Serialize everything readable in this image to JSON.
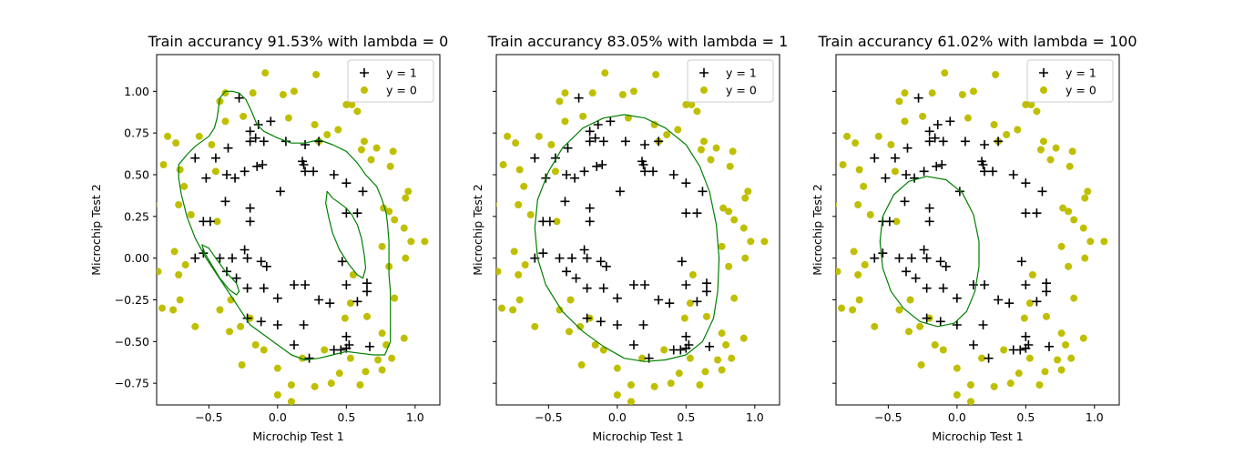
{
  "chart_data": [
    {
      "type": "scatter",
      "title": "Train accurancy 91.53% with lambda = 0",
      "xlabel": "Microchip Test 1",
      "ylabel": "Microchip Test 2",
      "xlim": [
        -0.88,
        1.18
      ],
      "ylim": [
        -0.88,
        1.22
      ],
      "xticks": [
        "−0.5",
        "0.0",
        "0.5",
        "1.0"
      ],
      "yticks": [
        "−0.75",
        "−0.50",
        "−0.25",
        "0.00",
        "0.25",
        "0.50",
        "0.75",
        "1.00"
      ],
      "legend": [
        "y = 1",
        "y = 0"
      ],
      "legend_position": "top-right",
      "boundary": [
        [
          [
            -0.72,
            0.56
          ],
          [
            -0.66,
            0.62
          ],
          [
            -0.6,
            0.67
          ],
          [
            -0.55,
            0.7
          ],
          [
            -0.5,
            0.73
          ],
          [
            -0.46,
            0.78
          ],
          [
            -0.44,
            0.84
          ],
          [
            -0.43,
            0.9
          ],
          [
            -0.42,
            0.96
          ],
          [
            -0.38,
            1.0
          ],
          [
            -0.33,
            1.0
          ],
          [
            -0.28,
            0.99
          ],
          [
            -0.23,
            0.95
          ],
          [
            -0.19,
            0.88
          ],
          [
            -0.15,
            0.8
          ],
          [
            -0.1,
            0.76
          ],
          [
            0.0,
            0.72
          ],
          [
            0.1,
            0.69
          ],
          [
            0.2,
            0.69
          ],
          [
            0.3,
            0.71
          ],
          [
            0.4,
            0.68
          ],
          [
            0.5,
            0.64
          ],
          [
            0.58,
            0.57
          ],
          [
            0.64,
            0.5
          ],
          [
            0.72,
            0.43
          ],
          [
            0.76,
            0.35
          ],
          [
            0.79,
            0.27
          ],
          [
            0.8,
            0.2
          ],
          [
            0.81,
            0.1
          ],
          [
            0.81,
            0.0
          ],
          [
            0.81,
            -0.1
          ],
          [
            0.82,
            -0.2
          ],
          [
            0.82,
            -0.3
          ],
          [
            0.82,
            -0.4
          ],
          [
            0.82,
            -0.5
          ],
          [
            0.78,
            -0.58
          ],
          [
            0.7,
            -0.58
          ],
          [
            0.6,
            -0.57
          ],
          [
            0.5,
            -0.56
          ],
          [
            0.4,
            -0.58
          ],
          [
            0.3,
            -0.6
          ],
          [
            0.2,
            -0.61
          ],
          [
            0.1,
            -0.58
          ],
          [
            0.0,
            -0.52
          ],
          [
            -0.1,
            -0.46
          ],
          [
            -0.2,
            -0.4
          ],
          [
            -0.28,
            -0.3
          ],
          [
            -0.36,
            -0.2
          ],
          [
            -0.44,
            -0.1
          ],
          [
            -0.52,
            0.0
          ],
          [
            -0.6,
            0.12
          ],
          [
            -0.66,
            0.25
          ],
          [
            -0.7,
            0.38
          ],
          [
            -0.72,
            0.48
          ],
          [
            -0.72,
            0.56
          ]
        ],
        [
          [
            0.36,
            0.4
          ],
          [
            0.4,
            0.36
          ],
          [
            0.45,
            0.33
          ],
          [
            0.5,
            0.3
          ],
          [
            0.54,
            0.26
          ],
          [
            0.58,
            0.2
          ],
          [
            0.61,
            0.12
          ],
          [
            0.63,
            0.02
          ],
          [
            0.64,
            -0.06
          ],
          [
            0.62,
            -0.12
          ],
          [
            0.58,
            -0.1
          ],
          [
            0.52,
            -0.04
          ],
          [
            0.45,
            0.05
          ],
          [
            0.4,
            0.15
          ],
          [
            0.37,
            0.25
          ],
          [
            0.35,
            0.33
          ],
          [
            0.36,
            0.4
          ]
        ],
        [
          [
            -0.55,
            0.08
          ],
          [
            -0.5,
            0.06
          ],
          [
            -0.45,
            0.0
          ],
          [
            -0.38,
            -0.08
          ],
          [
            -0.3,
            -0.15
          ],
          [
            -0.28,
            -0.2
          ],
          [
            -0.3,
            -0.22
          ],
          [
            -0.35,
            -0.19
          ],
          [
            -0.42,
            -0.12
          ],
          [
            -0.48,
            -0.04
          ],
          [
            -0.53,
            0.03
          ],
          [
            -0.55,
            0.08
          ]
        ]
      ]
    },
    {
      "type": "scatter",
      "title": "Train accurancy 83.05% with lambda = 1",
      "xlabel": "Microchip Test 1",
      "ylabel": "Microchip Test 2",
      "xlim": [
        -0.88,
        1.18
      ],
      "ylim": [
        -0.88,
        1.22
      ],
      "xticks": [
        "−0.5",
        "0.0",
        "0.5",
        "1.0"
      ],
      "yticks": [
        "−0.75",
        "−0.50",
        "−0.25",
        "0.00",
        "0.25",
        "0.50",
        "0.75",
        "1.00"
      ],
      "legend": [
        "y = 1",
        "y = 0"
      ],
      "legend_position": "top-right",
      "boundary": [
        [
          [
            -0.6,
            0.18
          ],
          [
            -0.58,
            0.35
          ],
          [
            -0.5,
            0.52
          ],
          [
            -0.4,
            0.66
          ],
          [
            -0.25,
            0.78
          ],
          [
            -0.1,
            0.84
          ],
          [
            0.05,
            0.86
          ],
          [
            0.2,
            0.84
          ],
          [
            0.35,
            0.78
          ],
          [
            0.5,
            0.68
          ],
          [
            0.6,
            0.55
          ],
          [
            0.67,
            0.4
          ],
          [
            0.72,
            0.2
          ],
          [
            0.74,
            0.0
          ],
          [
            0.73,
            -0.2
          ],
          [
            0.7,
            -0.36
          ],
          [
            0.62,
            -0.5
          ],
          [
            0.5,
            -0.58
          ],
          [
            0.35,
            -0.61
          ],
          [
            0.2,
            -0.62
          ],
          [
            0.05,
            -0.6
          ],
          [
            -0.1,
            -0.53
          ],
          [
            -0.25,
            -0.44
          ],
          [
            -0.4,
            -0.32
          ],
          [
            -0.52,
            -0.16
          ],
          [
            -0.58,
            0.0
          ],
          [
            -0.6,
            0.18
          ]
        ]
      ]
    },
    {
      "type": "scatter",
      "title": "Train accurancy 61.02% with lambda = 100",
      "xlabel": "Microchip Test 1",
      "ylabel": "Microchip Test 2",
      "xlim": [
        -0.88,
        1.18
      ],
      "ylim": [
        -0.88,
        1.22
      ],
      "xticks": [
        "−0.5",
        "0.0",
        "0.5",
        "1.0"
      ],
      "yticks": [
        "−0.75",
        "−0.50",
        "−0.25",
        "0.00",
        "0.25",
        "0.50",
        "0.75",
        "1.00"
      ],
      "legend": [
        "y = 1",
        "y = 0"
      ],
      "legend_position": "top-right",
      "boundary": [
        [
          [
            -0.56,
            0.1
          ],
          [
            -0.54,
            0.25
          ],
          [
            -0.46,
            0.38
          ],
          [
            -0.35,
            0.46
          ],
          [
            -0.22,
            0.49
          ],
          [
            -0.08,
            0.47
          ],
          [
            0.04,
            0.39
          ],
          [
            0.12,
            0.26
          ],
          [
            0.16,
            0.1
          ],
          [
            0.16,
            -0.05
          ],
          [
            0.13,
            -0.2
          ],
          [
            0.07,
            -0.32
          ],
          [
            -0.02,
            -0.39
          ],
          [
            -0.14,
            -0.41
          ],
          [
            -0.27,
            -0.38
          ],
          [
            -0.39,
            -0.3
          ],
          [
            -0.48,
            -0.2
          ],
          [
            -0.54,
            -0.06
          ],
          [
            -0.56,
            0.1
          ]
        ]
      ]
    }
  ],
  "points": {
    "positive": [
      [
        -0.28,
        0.96
      ],
      [
        -0.2,
        0.76
      ],
      [
        -0.14,
        0.8
      ],
      [
        -0.1,
        0.7
      ],
      [
        -0.16,
        0.72
      ],
      [
        -0.2,
        0.7
      ],
      [
        -0.05,
        0.82
      ],
      [
        0.06,
        0.7
      ],
      [
        0.2,
        0.68
      ],
      [
        0.3,
        0.7
      ],
      [
        -0.36,
        0.66
      ],
      [
        -0.45,
        0.6
      ],
      [
        -0.6,
        0.6
      ],
      [
        -0.52,
        0.48
      ],
      [
        -0.37,
        0.5
      ],
      [
        -0.31,
        0.48
      ],
      [
        -0.24,
        0.52
      ],
      [
        -0.15,
        0.55
      ],
      [
        -0.11,
        0.56
      ],
      [
        0.02,
        0.4
      ],
      [
        0.19,
        0.56
      ],
      [
        0.2,
        0.52
      ],
      [
        0.18,
        0.58
      ],
      [
        0.26,
        0.52
      ],
      [
        0.41,
        0.5
      ],
      [
        0.5,
        0.45
      ],
      [
        0.62,
        0.4
      ],
      [
        0.58,
        0.27
      ],
      [
        -0.54,
        0.22
      ],
      [
        -0.49,
        0.22
      ],
      [
        -0.38,
        0.34
      ],
      [
        -0.2,
        0.3
      ],
      [
        -0.2,
        0.22
      ],
      [
        -0.42,
        0.0
      ],
      [
        -0.33,
        0.0
      ],
      [
        -0.24,
        0.05
      ],
      [
        -0.22,
        0.0
      ],
      [
        -0.54,
        0.03
      ],
      [
        -0.6,
        0.0
      ],
      [
        -0.37,
        -0.08
      ],
      [
        -0.3,
        -0.12
      ],
      [
        -0.22,
        -0.18
      ],
      [
        -0.1,
        -0.18
      ],
      [
        0.0,
        -0.24
      ],
      [
        -0.22,
        -0.36
      ],
      [
        -0.12,
        -0.38
      ],
      [
        0.0,
        -0.4
      ],
      [
        0.12,
        -0.52
      ],
      [
        0.23,
        -0.6
      ],
      [
        0.19,
        -0.4
      ],
      [
        0.3,
        -0.25
      ],
      [
        0.41,
        -0.55
      ],
      [
        0.46,
        -0.55
      ],
      [
        0.5,
        -0.54
      ],
      [
        0.5,
        -0.47
      ],
      [
        0.52,
        -0.52
      ],
      [
        0.67,
        -0.53
      ],
      [
        0.58,
        -0.26
      ],
      [
        0.5,
        -0.16
      ],
      [
        0.65,
        -0.2
      ],
      [
        0.65,
        -0.15
      ],
      [
        0.47,
        -0.02
      ],
      [
        -0.12,
        -0.02
      ],
      [
        0.2,
        -0.16
      ],
      [
        0.12,
        -0.16
      ],
      [
        0.38,
        -0.27
      ],
      [
        0.5,
        0.27
      ],
      [
        -0.08,
        -0.05
      ]
    ],
    "negative": [
      [
        -0.09,
        1.11
      ],
      [
        0.28,
        1.1
      ],
      [
        0.12,
        1.0
      ],
      [
        -0.38,
        0.99
      ],
      [
        -0.18,
        0.99
      ],
      [
        0.04,
        0.98
      ],
      [
        0.08,
        0.84
      ],
      [
        -0.42,
        0.94
      ],
      [
        -0.25,
        0.85
      ],
      [
        0.27,
        0.8
      ],
      [
        0.36,
        0.74
      ],
      [
        0.44,
        0.77
      ],
      [
        0.54,
        0.92
      ],
      [
        0.58,
        0.88
      ],
      [
        0.63,
        0.7
      ],
      [
        -0.38,
        0.82
      ],
      [
        -0.48,
        0.68
      ],
      [
        -0.57,
        0.73
      ],
      [
        -0.74,
        0.69
      ],
      [
        -0.8,
        0.73
      ],
      [
        -0.71,
        0.53
      ],
      [
        -0.83,
        0.56
      ],
      [
        -0.9,
        0.32
      ],
      [
        -0.72,
        0.32
      ],
      [
        -0.68,
        0.43
      ],
      [
        -0.75,
        0.04
      ],
      [
        -0.87,
        -0.08
      ],
      [
        -0.72,
        -0.1
      ],
      [
        -0.71,
        -0.25
      ],
      [
        -0.76,
        -0.31
      ],
      [
        -0.84,
        -0.3
      ],
      [
        -0.6,
        -0.41
      ],
      [
        -0.42,
        -0.31
      ],
      [
        -0.35,
        -0.44
      ],
      [
        -0.27,
        -0.41
      ],
      [
        -0.26,
        -0.64
      ],
      [
        -0.16,
        -0.52
      ],
      [
        -0.1,
        -0.55
      ],
      [
        0.0,
        -0.66
      ],
      [
        0.18,
        -0.6
      ],
      [
        0.39,
        -0.75
      ],
      [
        0.45,
        -0.69
      ],
      [
        0.53,
        -0.6
      ],
      [
        0.6,
        -0.76
      ],
      [
        0.64,
        -0.68
      ],
      [
        0.73,
        -0.61
      ],
      [
        0.76,
        -0.67
      ],
      [
        0.76,
        -0.45
      ],
      [
        0.83,
        -0.6
      ],
      [
        0.85,
        -0.24
      ],
      [
        0.81,
        -0.05
      ],
      [
        0.93,
        0.0
      ],
      [
        1.07,
        0.1
      ],
      [
        0.97,
        0.1
      ],
      [
        0.85,
        0.23
      ],
      [
        0.77,
        0.3
      ],
      [
        0.92,
        0.18
      ],
      [
        0.93,
        0.36
      ],
      [
        0.95,
        0.4
      ],
      [
        0.82,
        0.55
      ],
      [
        0.68,
        0.59
      ],
      [
        0.72,
        0.66
      ],
      [
        0.61,
        0.65
      ],
      [
        0.1,
        -0.76
      ],
      [
        0.27,
        -0.77
      ],
      [
        0.49,
        -0.36
      ],
      [
        0.53,
        -0.27
      ],
      [
        -0.45,
        0.52
      ],
      [
        0.3,
        0.7
      ],
      [
        0.5,
        0.92
      ],
      [
        -0.44,
        0.22
      ],
      [
        0.84,
        0.64
      ],
      [
        -0.67,
        -0.04
      ],
      [
        -0.34,
        -0.25
      ],
      [
        -0.2,
        -0.36
      ],
      [
        0.0,
        -0.82
      ],
      [
        -0.63,
        0.26
      ],
      [
        0.34,
        -0.55
      ],
      [
        0.79,
        -0.52
      ],
      [
        0.92,
        -0.48
      ],
      [
        0.81,
        0.28
      ],
      [
        0.1,
        -0.86
      ],
      [
        0.76,
        0.07
      ],
      [
        0.55,
        -0.1
      ],
      [
        0.65,
        -0.35
      ]
    ]
  }
}
